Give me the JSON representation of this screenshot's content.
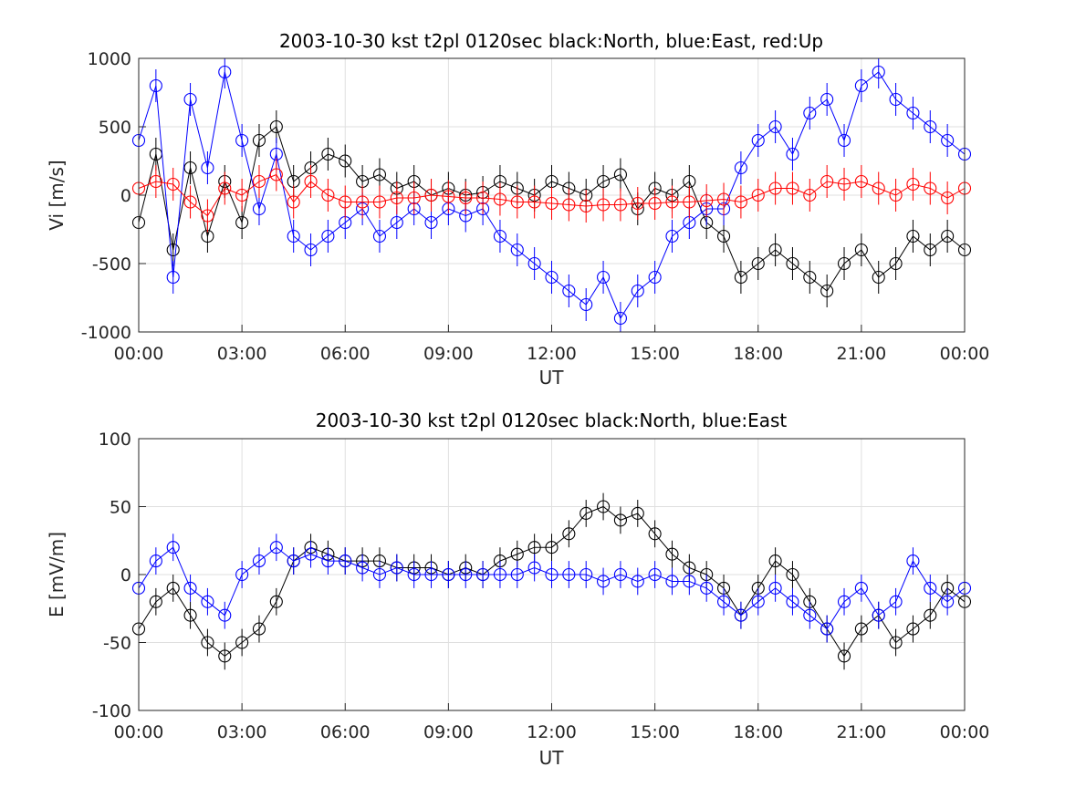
{
  "chart_data": [
    {
      "type": "scatter",
      "title": "2003-10-30 kst t2pl 0120sec black:North, blue:East, red:Up",
      "xlabel": "UT",
      "ylabel": "Vi [m/s]",
      "xlim": [
        "00:00",
        "24:00"
      ],
      "ylim": [
        -1000,
        1000
      ],
      "x_ticks": [
        "00:00",
        "03:00",
        "06:00",
        "09:00",
        "12:00",
        "15:00",
        "18:00",
        "21:00",
        "00:00"
      ],
      "y_ticks": [
        "1000",
        "500",
        "0",
        "-500",
        "-1000"
      ],
      "y_tick_values": [
        1000,
        500,
        0,
        -500,
        -1000
      ],
      "grid": true,
      "marker": "open-circle with vertical error bars",
      "series": [
        {
          "color": "#000000",
          "x": [
            0.0,
            0.5,
            1.0,
            1.5,
            2.0,
            2.5,
            3.0,
            3.5,
            4.0,
            4.5,
            5.0,
            5.5,
            6.0,
            6.5,
            7.0,
            7.5,
            8.0,
            8.5,
            9.0,
            9.5,
            10.0,
            10.5,
            11.0,
            11.5,
            12.0,
            12.5,
            13.0,
            13.5,
            14.0,
            14.5,
            15.0,
            15.5,
            16.0,
            16.5,
            17.0,
            17.5,
            18.0,
            18.5,
            19.0,
            19.5,
            20.0,
            20.5,
            21.0,
            21.5,
            22.0,
            22.5,
            23.0,
            23.5,
            24.0
          ],
          "y": [
            -200,
            300,
            -400,
            200,
            -300,
            100,
            -200,
            400,
            500,
            100,
            200,
            300,
            250,
            100,
            150,
            50,
            100,
            0,
            50,
            0,
            20,
            100,
            50,
            0,
            100,
            50,
            0,
            100,
            150,
            -100,
            50,
            0,
            100,
            -200,
            -300,
            -600,
            -500,
            -400,
            -500,
            -600,
            -700,
            -500,
            -400,
            -600,
            -500,
            -300,
            -400,
            -300,
            -400
          ]
        },
        {
          "color": "#0000ff",
          "x": [
            0.0,
            0.5,
            1.0,
            1.5,
            2.0,
            2.5,
            3.0,
            3.5,
            4.0,
            4.5,
            5.0,
            5.5,
            6.0,
            6.5,
            7.0,
            7.5,
            8.0,
            8.5,
            9.0,
            9.5,
            10.0,
            10.5,
            11.0,
            11.5,
            12.0,
            12.5,
            13.0,
            13.5,
            14.0,
            14.5,
            15.0,
            15.5,
            16.0,
            16.5,
            17.0,
            17.5,
            18.0,
            18.5,
            19.0,
            19.5,
            20.0,
            20.5,
            21.0,
            21.5,
            22.0,
            22.5,
            23.0,
            23.5,
            24.0
          ],
          "y": [
            400,
            800,
            -600,
            700,
            200,
            900,
            400,
            -100,
            300,
            -300,
            -400,
            -300,
            -200,
            -100,
            -300,
            -200,
            -100,
            -200,
            -100,
            -150,
            -100,
            -300,
            -400,
            -500,
            -600,
            -700,
            -800,
            -600,
            -900,
            -700,
            -600,
            -300,
            -200,
            -100,
            -100,
            200,
            400,
            500,
            300,
            600,
            700,
            400,
            800,
            900,
            700,
            600,
            500,
            400,
            300
          ]
        },
        {
          "color": "#ff0000",
          "x": [
            0.0,
            0.5,
            1.0,
            1.5,
            2.0,
            2.5,
            3.0,
            3.5,
            4.0,
            4.5,
            5.0,
            5.5,
            6.0,
            6.5,
            7.0,
            7.5,
            8.0,
            8.5,
            9.0,
            9.5,
            10.0,
            10.5,
            11.0,
            11.5,
            12.0,
            12.5,
            13.0,
            13.5,
            14.0,
            14.5,
            15.0,
            15.5,
            16.0,
            16.5,
            17.0,
            17.5,
            18.0,
            18.5,
            19.0,
            19.5,
            20.0,
            20.5,
            21.0,
            21.5,
            22.0,
            22.5,
            23.0,
            23.5,
            24.0
          ],
          "y": [
            50,
            100,
            80,
            -50,
            -150,
            50,
            0,
            100,
            150,
            -50,
            100,
            0,
            -50,
            -50,
            -50,
            -20,
            -20,
            0,
            -10,
            -20,
            -20,
            -30,
            -50,
            -50,
            -60,
            -70,
            -80,
            -70,
            -70,
            -60,
            -60,
            -50,
            -50,
            -40,
            -30,
            -50,
            0,
            50,
            50,
            0,
            100,
            80,
            100,
            50,
            0,
            80,
            50,
            -20,
            50
          ]
        }
      ]
    },
    {
      "type": "scatter",
      "title": "2003-10-30 kst t2pl 0120sec black:North, blue:East",
      "xlabel": "UT",
      "ylabel": "E [mV/m]",
      "xlim": [
        "00:00",
        "24:00"
      ],
      "ylim": [
        -100,
        100
      ],
      "x_ticks": [
        "00:00",
        "03:00",
        "06:00",
        "09:00",
        "12:00",
        "15:00",
        "18:00",
        "21:00",
        "00:00"
      ],
      "y_ticks": [
        "100",
        "50",
        "0",
        "-50",
        "-100"
      ],
      "y_tick_values": [
        100,
        50,
        0,
        -50,
        -100
      ],
      "grid": true,
      "marker": "open-circle with vertical error bars",
      "series": [
        {
          "color": "#000000",
          "x": [
            0.0,
            0.5,
            1.0,
            1.5,
            2.0,
            2.5,
            3.0,
            3.5,
            4.0,
            4.5,
            5.0,
            5.5,
            6.0,
            6.5,
            7.0,
            7.5,
            8.0,
            8.5,
            9.0,
            9.5,
            10.0,
            10.5,
            11.0,
            11.5,
            12.0,
            12.5,
            13.0,
            13.5,
            14.0,
            14.5,
            15.0,
            15.5,
            16.0,
            16.5,
            17.0,
            17.5,
            18.0,
            18.5,
            19.0,
            19.5,
            20.0,
            20.5,
            21.0,
            21.5,
            22.0,
            22.5,
            23.0,
            23.5,
            24.0
          ],
          "y": [
            -40,
            -20,
            -10,
            -30,
            -50,
            -60,
            -50,
            -40,
            -20,
            10,
            20,
            15,
            10,
            10,
            10,
            5,
            5,
            5,
            0,
            5,
            0,
            10,
            15,
            20,
            20,
            30,
            45,
            50,
            40,
            45,
            30,
            15,
            5,
            0,
            -10,
            -30,
            -10,
            10,
            0,
            -20,
            -40,
            -60,
            -40,
            -30,
            -50,
            -40,
            -30,
            -10,
            -20
          ]
        },
        {
          "color": "#0000ff",
          "x": [
            0.0,
            0.5,
            1.0,
            1.5,
            2.0,
            2.5,
            3.0,
            3.5,
            4.0,
            4.5,
            5.0,
            5.5,
            6.0,
            6.5,
            7.0,
            7.5,
            8.0,
            8.5,
            9.0,
            9.5,
            10.0,
            10.5,
            11.0,
            11.5,
            12.0,
            12.5,
            13.0,
            13.5,
            14.0,
            14.5,
            15.0,
            15.5,
            16.0,
            16.5,
            17.0,
            17.5,
            18.0,
            18.5,
            19.0,
            19.5,
            20.0,
            20.5,
            21.0,
            21.5,
            22.0,
            22.5,
            23.0,
            23.5,
            24.0
          ],
          "y": [
            -10,
            10,
            20,
            -10,
            -20,
            -30,
            0,
            10,
            20,
            10,
            15,
            10,
            10,
            5,
            0,
            5,
            0,
            0,
            0,
            0,
            0,
            0,
            0,
            5,
            0,
            0,
            0,
            -5,
            0,
            -5,
            0,
            -5,
            -5,
            -10,
            -20,
            -30,
            -20,
            -10,
            -20,
            -30,
            -40,
            -20,
            -10,
            -30,
            -20,
            10,
            -10,
            -20,
            -10
          ]
        }
      ]
    }
  ]
}
